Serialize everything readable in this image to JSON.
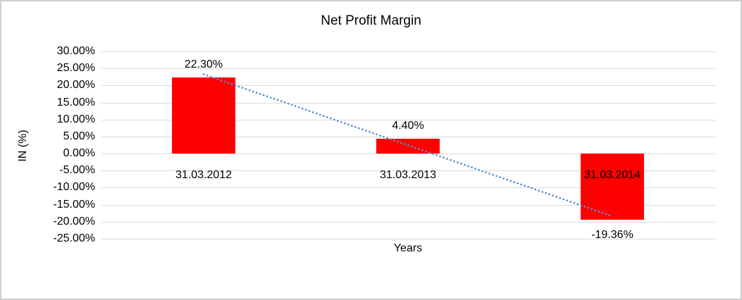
{
  "chart_data": {
    "type": "bar",
    "title": "Net Profit Margin",
    "xlabel": "Years",
    "ylabel": "IN (%)",
    "categories": [
      "31.03.2012",
      "31.03.2013",
      "31.03.2014"
    ],
    "values": [
      22.3,
      4.4,
      -19.36
    ],
    "data_labels": [
      "22.30%",
      "4.40%",
      "-19.36%"
    ],
    "yticks": [
      "30.00%",
      "25.00%",
      "20.00%",
      "15.00%",
      "10.00%",
      "5.00%",
      "0.00%",
      "-5.00%",
      "-10.00%",
      "-15.00%",
      "-20.00%",
      "-25.00%"
    ],
    "ylim": [
      -25,
      30
    ],
    "grid": true,
    "legend": "none",
    "bar_color": "#ff0000",
    "gridline_color": "#d9d9d9",
    "trendline": {
      "type": "linear",
      "style": "dotted",
      "color": "#5b8fcb",
      "start_value": 23.28,
      "end_value": -18.38
    }
  }
}
